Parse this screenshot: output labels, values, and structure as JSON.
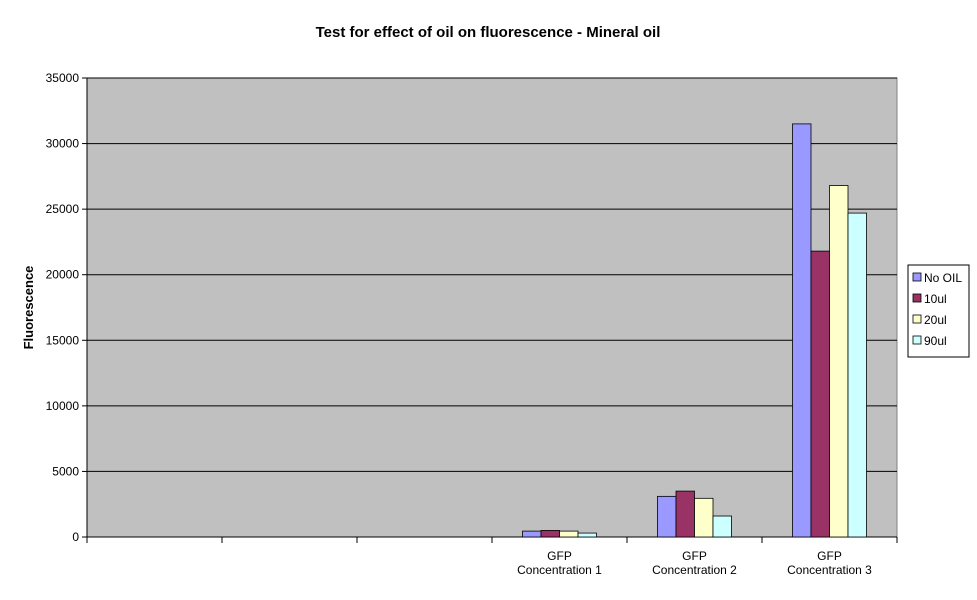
{
  "chart_data": {
    "type": "bar",
    "title": "Test for effect of oil on fluorescence - Mineral oil",
    "xlabel": "",
    "ylabel": "Fluorescence",
    "ylim": [
      0,
      35000
    ],
    "yticks": [
      0,
      5000,
      10000,
      15000,
      20000,
      25000,
      30000,
      35000
    ],
    "grid": true,
    "legend_position": "right",
    "categories": [
      "",
      "",
      "",
      "GFP Concentration 1",
      "GFP Concentration 2",
      "GFP Concentration 3"
    ],
    "category_lines": [
      [
        "",
        ""
      ],
      [
        "",
        ""
      ],
      [
        "",
        ""
      ],
      [
        "GFP",
        "Concentration 1"
      ],
      [
        "GFP",
        "Concentration 2"
      ],
      [
        "GFP",
        "Concentration 3"
      ]
    ],
    "series": [
      {
        "name": "No OIL",
        "color": "#9999ff",
        "values": [
          null,
          null,
          null,
          450,
          3100,
          31500
        ]
      },
      {
        "name": "10ul",
        "color": "#993366",
        "values": [
          null,
          null,
          null,
          500,
          3500,
          21800
        ]
      },
      {
        "name": "20ul",
        "color": "#ffffcc",
        "values": [
          null,
          null,
          null,
          450,
          2950,
          26800
        ]
      },
      {
        "name": "90ul",
        "color": "#ccffff",
        "values": [
          null,
          null,
          null,
          300,
          1600,
          24700
        ]
      }
    ],
    "plot_background": "#c0c0c0"
  }
}
